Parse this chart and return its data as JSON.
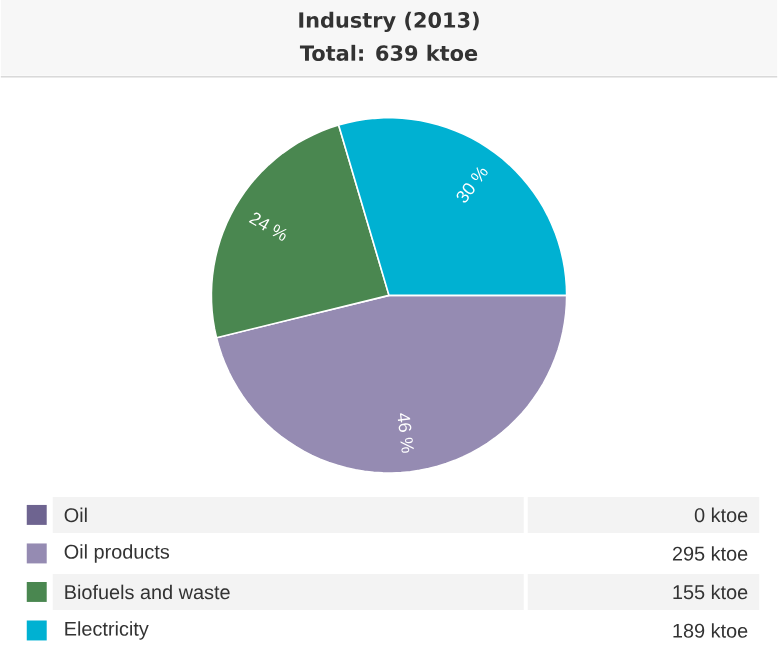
{
  "chart_data": {
    "type": "pie",
    "title": "Industry (2013)",
    "subtitle": "Total: 639 ktoe",
    "categories": [
      "Oil",
      "Oil products",
      "Biofuels and waste",
      "Electricity"
    ],
    "values": [
      0,
      295,
      155,
      189
    ],
    "colors": [
      "#6e6490",
      "#958bb2",
      "#4a8750",
      "#00b1d2"
    ],
    "value_labels": [
      "0 ktoe",
      "295 ktoe",
      "155 ktoe",
      "189 ktoe"
    ],
    "annotations": [
      {
        "text": "46 %",
        "x": "Oil products"
      },
      {
        "text": "24 %",
        "x": "Biofuels and waste"
      },
      {
        "text": "30 %",
        "x": "Electricity"
      }
    ],
    "legend": "bottom"
  }
}
